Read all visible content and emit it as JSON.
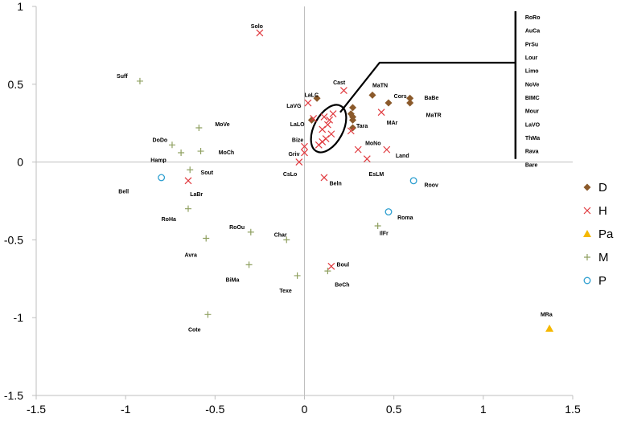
{
  "chart_data": {
    "type": "scatter",
    "xlim": [
      -1.5,
      1.5
    ],
    "ylim": [
      -1.5,
      1.0
    ],
    "xticks": [
      "-1.5",
      "-1",
      "-0.5",
      "0",
      "0.5",
      "1",
      "1.5"
    ],
    "yticks": [
      "1",
      "0.5",
      "0",
      "-0.5",
      "-1",
      "-1.5"
    ],
    "xtick_values": [
      -1.5,
      -1,
      -0.5,
      0,
      0.5,
      1,
      1.5
    ],
    "ytick_values": [
      1,
      0.5,
      0,
      -0.5,
      -1,
      -1.5
    ],
    "grid": false,
    "legend_position": "right",
    "series": [
      {
        "name": "D",
        "marker": "diamond",
        "color": "#8B5A2B",
        "points": [
          [
            0.07,
            0.41
          ],
          [
            0.04,
            0.27
          ],
          [
            0.27,
            0.35
          ],
          [
            0.27,
            0.29
          ],
          [
            0.26,
            0.31
          ],
          [
            0.27,
            0.27
          ],
          [
            0.27,
            0.22
          ],
          [
            0.38,
            0.43
          ],
          [
            0.47,
            0.38
          ],
          [
            0.59,
            0.41
          ],
          [
            0.59,
            0.38
          ]
        ]
      },
      {
        "name": "H",
        "marker": "x",
        "color": "#E0393E",
        "points": [
          [
            -0.25,
            0.83
          ],
          [
            0.22,
            0.46
          ],
          [
            0.02,
            0.38
          ],
          [
            0.05,
            0.28
          ],
          [
            0.11,
            0.29
          ],
          [
            0.14,
            0.27
          ],
          [
            0.16,
            0.31
          ],
          [
            0.13,
            0.24
          ],
          [
            0.1,
            0.21
          ],
          [
            0.15,
            0.18
          ],
          [
            0.12,
            0.15
          ],
          [
            0.1,
            0.13
          ],
          [
            0.08,
            0.11
          ],
          [
            0.26,
            0.2
          ],
          [
            0.43,
            0.32
          ],
          [
            0.3,
            0.08
          ],
          [
            0.46,
            0.08
          ],
          [
            0.35,
            0.02
          ],
          [
            0.0,
            0.1
          ],
          [
            0.0,
            0.06
          ],
          [
            -0.03,
            0.0
          ],
          [
            0.11,
            -0.1
          ],
          [
            -0.65,
            -0.12
          ],
          [
            0.15,
            -0.67
          ]
        ]
      },
      {
        "name": "Pa",
        "marker": "triangle",
        "color": "#F5B800",
        "points": [
          [
            1.37,
            -1.07
          ]
        ]
      },
      {
        "name": "M",
        "marker": "plus",
        "color": "#8FA060",
        "points": [
          [
            -0.92,
            0.52
          ],
          [
            -0.59,
            0.22
          ],
          [
            -0.74,
            0.11
          ],
          [
            -0.69,
            0.06
          ],
          [
            -0.58,
            0.07
          ],
          [
            -0.64,
            -0.05
          ],
          [
            -0.65,
            -0.3
          ],
          [
            -0.55,
            -0.49
          ],
          [
            -0.3,
            -0.45
          ],
          [
            -0.1,
            -0.5
          ],
          [
            -0.31,
            -0.66
          ],
          [
            -0.04,
            -0.73
          ],
          [
            -0.54,
            -0.98
          ],
          [
            0.13,
            -0.7
          ],
          [
            0.41,
            -0.41
          ]
        ]
      },
      {
        "name": "P",
        "marker": "circle",
        "color": "#2E9FD0",
        "points": [
          [
            -0.8,
            -0.1
          ],
          [
            0.61,
            -0.12
          ],
          [
            0.47,
            -0.32
          ]
        ]
      }
    ],
    "point_labels": [
      {
        "text": "Solo",
        "x": -0.3,
        "y": 0.86
      },
      {
        "text": "Suff",
        "x": -1.05,
        "y": 0.54
      },
      {
        "text": "Cast",
        "x": 0.16,
        "y": 0.5
      },
      {
        "text": "MaTN",
        "x": 0.38,
        "y": 0.48
      },
      {
        "text": "LaLC",
        "x": 0.0,
        "y": 0.42
      },
      {
        "text": "Cors",
        "x": 0.5,
        "y": 0.41
      },
      {
        "text": "BaBe",
        "x": 0.67,
        "y": 0.4
      },
      {
        "text": "LaVG",
        "x": -0.1,
        "y": 0.35
      },
      {
        "text": "MaTR",
        "x": 0.68,
        "y": 0.29
      },
      {
        "text": "MAr",
        "x": 0.46,
        "y": 0.24
      },
      {
        "text": "LaLO",
        "x": -0.08,
        "y": 0.23
      },
      {
        "text": "Tara",
        "x": 0.29,
        "y": 0.22
      },
      {
        "text": "MoVe",
        "x": -0.5,
        "y": 0.23
      },
      {
        "text": "DoDo",
        "x": -0.85,
        "y": 0.13
      },
      {
        "text": "Bize",
        "x": -0.07,
        "y": 0.13
      },
      {
        "text": "MoNo",
        "x": 0.34,
        "y": 0.11
      },
      {
        "text": "MoCh",
        "x": -0.48,
        "y": 0.05
      },
      {
        "text": "Griv",
        "x": -0.09,
        "y": 0.04
      },
      {
        "text": "Land",
        "x": 0.51,
        "y": 0.03
      },
      {
        "text": "Hamp",
        "x": -0.86,
        "y": 0.0
      },
      {
        "text": "Sout",
        "x": -0.58,
        "y": -0.08
      },
      {
        "text": "CsLo",
        "x": -0.12,
        "y": -0.09
      },
      {
        "text": "EsLM",
        "x": 0.36,
        "y": -0.09
      },
      {
        "text": "Bell",
        "x": -1.04,
        "y": -0.2
      },
      {
        "text": "Beln",
        "x": 0.14,
        "y": -0.15
      },
      {
        "text": "LaBr",
        "x": -0.64,
        "y": -0.22
      },
      {
        "text": "Roov",
        "x": 0.67,
        "y": -0.16
      },
      {
        "text": "RoHa",
        "x": -0.8,
        "y": -0.38
      },
      {
        "text": "Roma",
        "x": 0.52,
        "y": -0.37
      },
      {
        "text": "RoOu",
        "x": -0.42,
        "y": -0.43
      },
      {
        "text": "Char",
        "x": -0.17,
        "y": -0.48
      },
      {
        "text": "IlFr",
        "x": 0.42,
        "y": -0.47
      },
      {
        "text": "Avra",
        "x": -0.67,
        "y": -0.61
      },
      {
        "text": "Boul",
        "x": 0.18,
        "y": -0.67
      },
      {
        "text": "BiMa",
        "x": -0.44,
        "y": -0.77
      },
      {
        "text": "BeCh",
        "x": 0.17,
        "y": -0.8
      },
      {
        "text": "Texe",
        "x": -0.14,
        "y": -0.84
      },
      {
        "text": "Cote",
        "x": -0.65,
        "y": -1.09
      },
      {
        "text": "MRa",
        "x": 1.32,
        "y": -0.99
      }
    ],
    "bracket_labels": [
      "RoRo",
      "AuCa",
      "PrSu",
      "Lour",
      "Limo",
      "NoVe",
      "BIMC",
      "Mour",
      "LaVO",
      "ThMa",
      "Rava",
      "Bare"
    ]
  }
}
